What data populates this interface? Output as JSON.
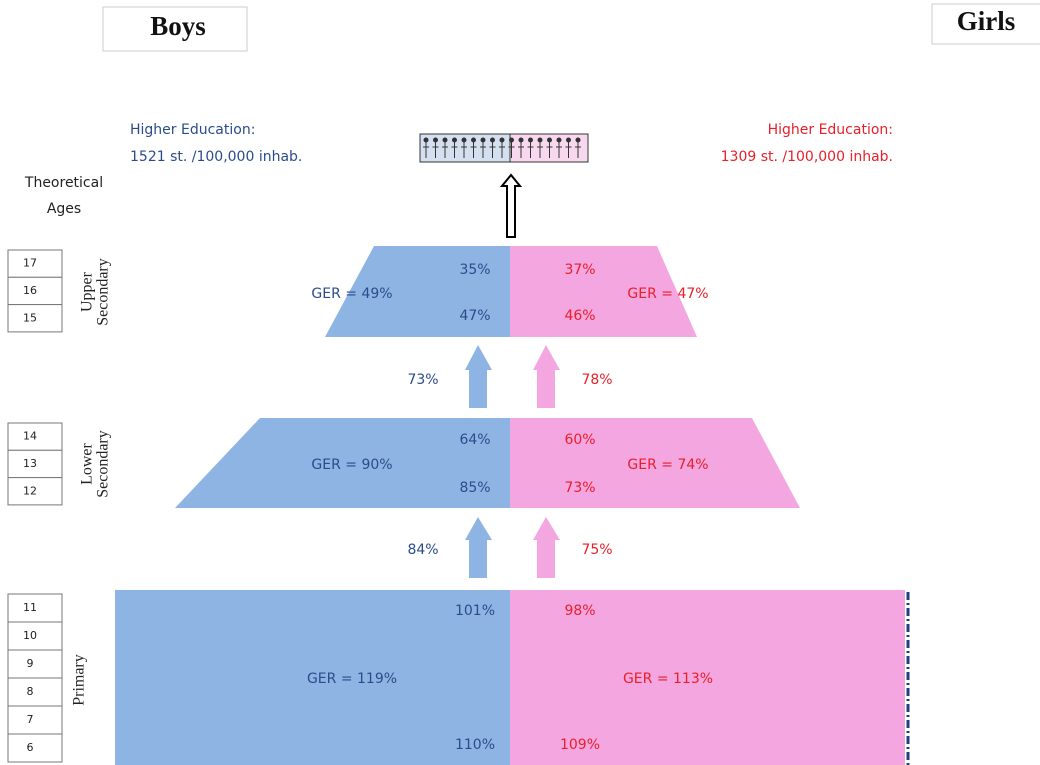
{
  "header": {
    "boys": "Boys",
    "girls": "Girls"
  },
  "higher_education": {
    "boys": {
      "label": "Higher Education:",
      "rate": "1521 st. /100,000 inhab."
    },
    "girls": {
      "label": "Higher Education:",
      "rate": "1309 st. /100,000 inhab."
    }
  },
  "ages_title": [
    "Theoretical",
    "Ages"
  ],
  "levels": [
    {
      "name": [
        "Upper",
        "Secondary"
      ],
      "ages": [
        "17",
        "16",
        "15"
      ],
      "boys": {
        "ger": "GER = 49%",
        "first": "35%",
        "last": "47%"
      },
      "girls": {
        "ger": "GER = 47%",
        "first": "37%",
        "last": "46%"
      }
    },
    {
      "name": [
        "Lower",
        "Secondary"
      ],
      "ages": [
        "14",
        "13",
        "12"
      ],
      "boys": {
        "ger": "GER = 90%",
        "first": "64%",
        "last": "85%"
      },
      "girls": {
        "ger": "GER = 74%",
        "first": "60%",
        "last": "73%"
      }
    },
    {
      "name": [
        "Primary"
      ],
      "ages": [
        "11",
        "10",
        "9",
        "8",
        "7",
        "6"
      ],
      "boys": {
        "ger": "GER = 119%",
        "first": "101%",
        "last": "110%"
      },
      "girls": {
        "ger": "GER = 113%",
        "first": "98%",
        "last": "109%"
      }
    }
  ],
  "transitions": [
    {
      "boys": "73%",
      "girls": "78%"
    },
    {
      "boys": "84%",
      "girls": "75%"
    }
  ]
}
